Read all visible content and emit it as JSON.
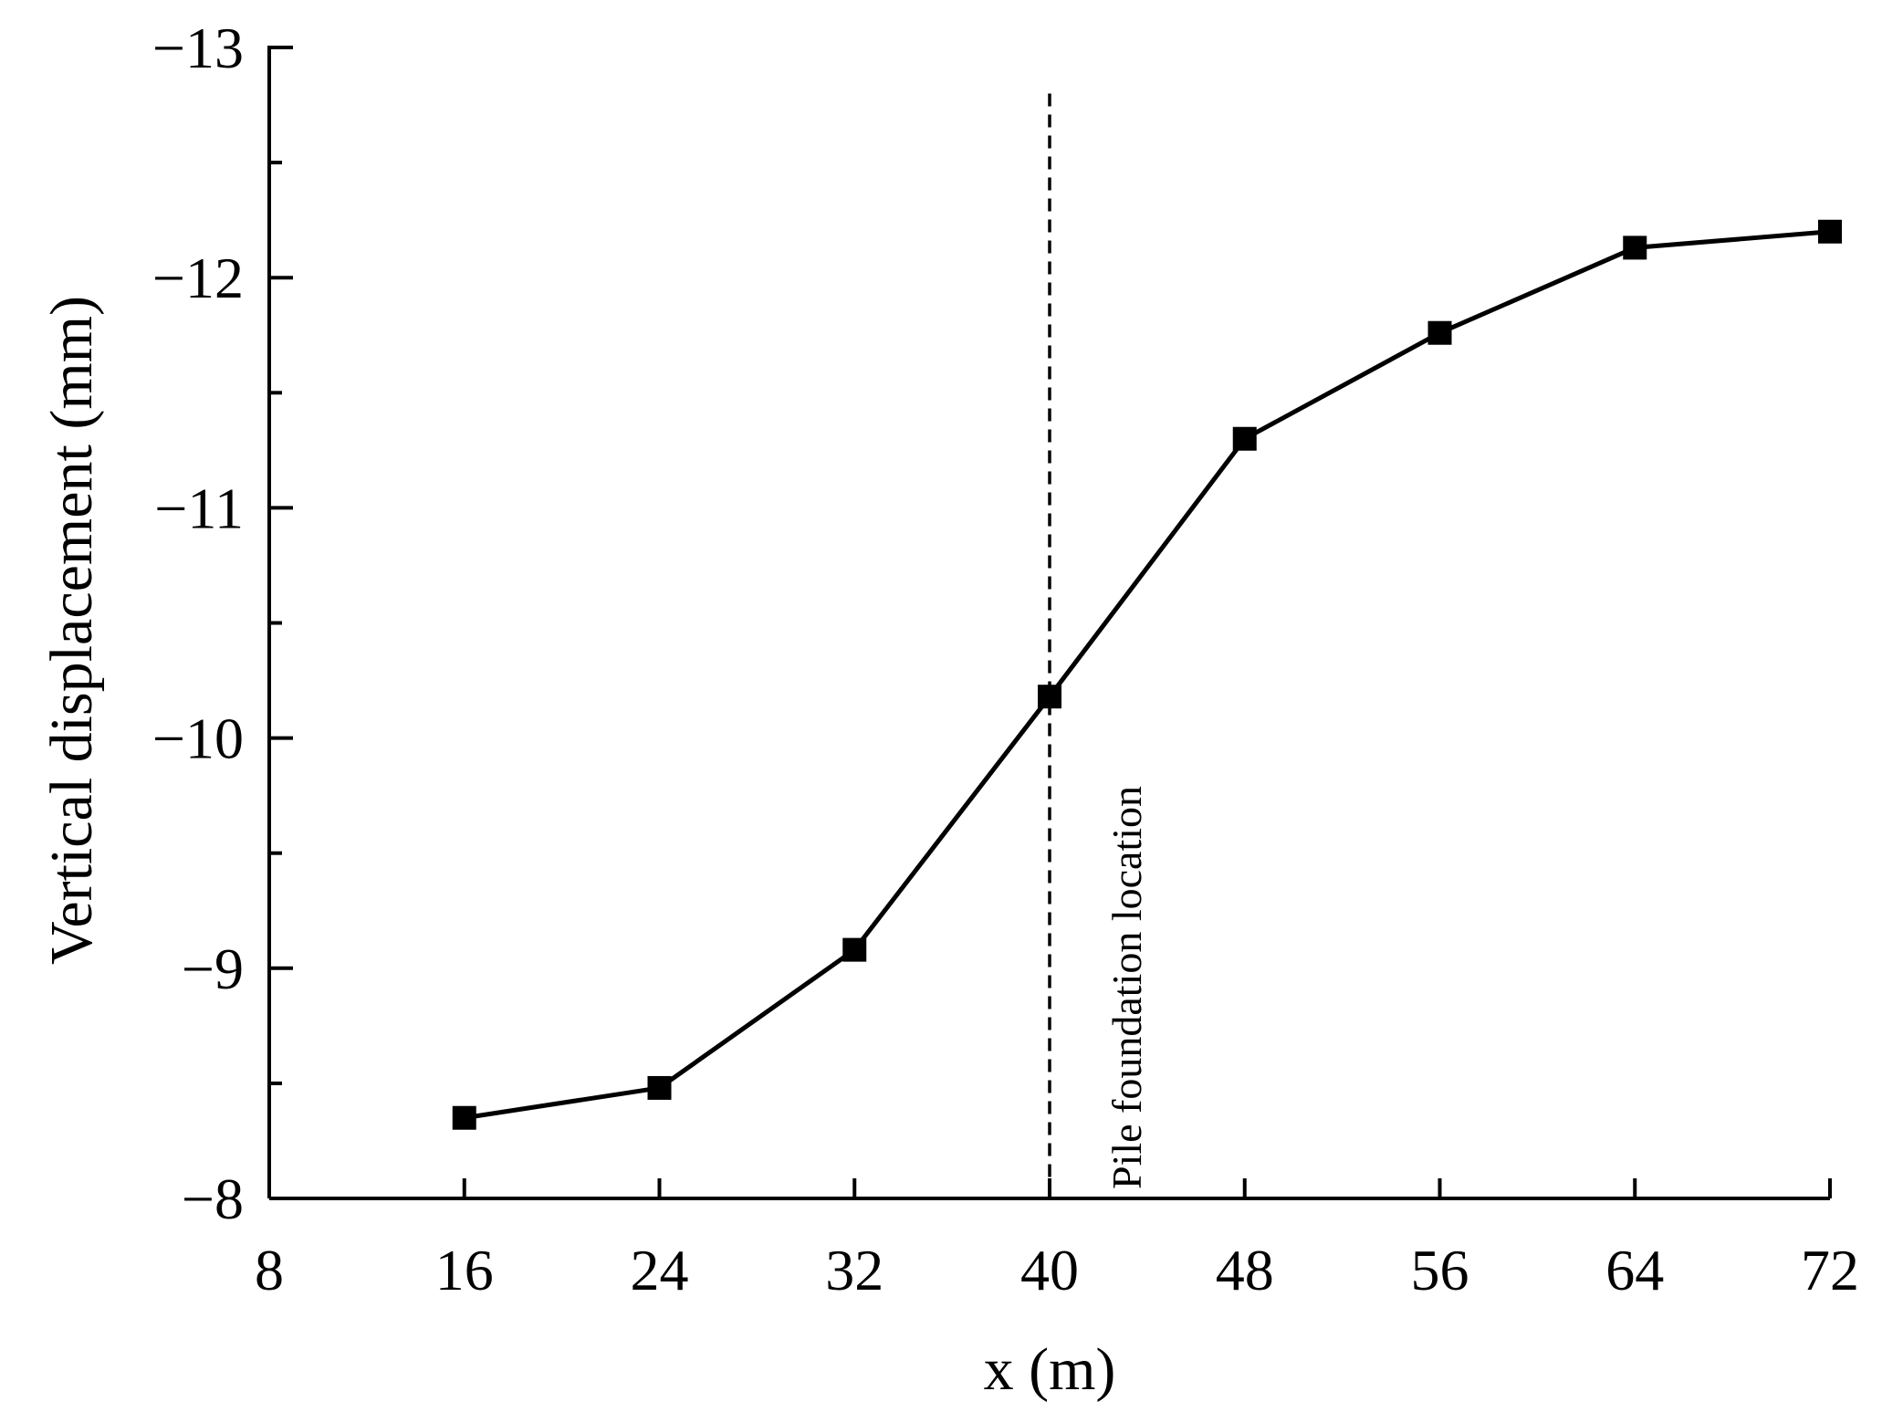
{
  "chart_data": {
    "type": "line",
    "xlabel": "x (m)",
    "ylabel": "Vertical displacement (mm)",
    "xlim": [
      8,
      72
    ],
    "ylim": [
      -8,
      -13
    ],
    "y_axis_inverted": true,
    "x_ticks": [
      8,
      16,
      24,
      32,
      40,
      48,
      56,
      64,
      72
    ],
    "y_ticks": [
      -8,
      -9,
      -10,
      -11,
      -12,
      -13
    ],
    "y_tick_labels": [
      "−8",
      "−9",
      "−10",
      "−11",
      "−12",
      "−13"
    ],
    "grid": false,
    "legend": "none",
    "series": [
      {
        "marker": "square",
        "color": "#000000",
        "x": [
          16,
          24,
          32,
          40,
          48,
          56,
          64,
          72
        ],
        "y": [
          -8.35,
          -8.48,
          -9.08,
          -10.18,
          -11.3,
          -11.76,
          -12.13,
          -12.2
        ]
      }
    ],
    "annotations": [
      {
        "type": "vertical-dashed-line",
        "x": 40,
        "text": "Pile foundation location"
      }
    ]
  }
}
